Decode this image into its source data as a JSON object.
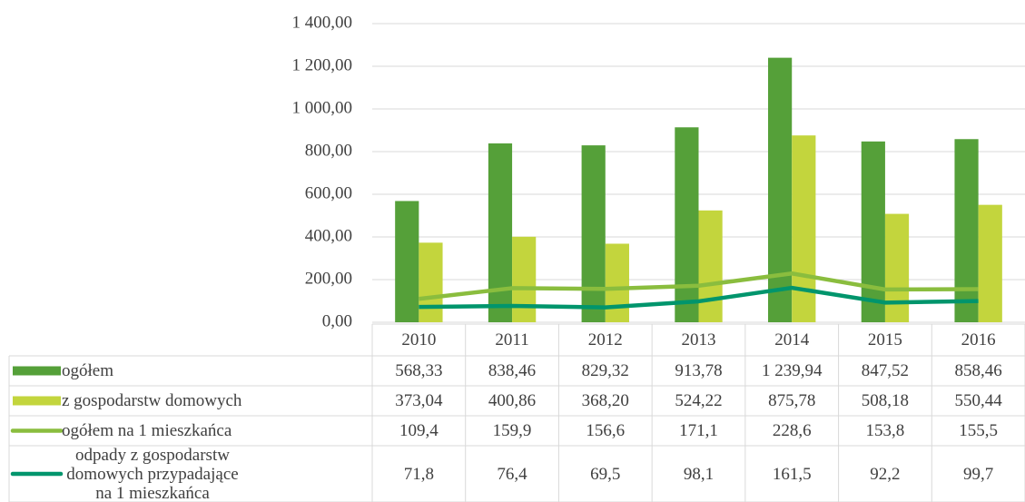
{
  "chart_data": {
    "type": "bar",
    "categories": [
      "2010",
      "2011",
      "2012",
      "2013",
      "2014",
      "2015",
      "2016"
    ],
    "series": [
      {
        "name": "ogółem",
        "type": "bar",
        "color": "#55a039",
        "values": [
          568.33,
          838.46,
          829.32,
          913.78,
          1239.94,
          847.52,
          858.46
        ],
        "value_labels": [
          "568,33",
          "838,46",
          "829,32",
          "913,78",
          "1 239,94",
          "847,52",
          "858,46"
        ]
      },
      {
        "name": "z gospodarstw domowych",
        "type": "bar",
        "color": "#c3d53d",
        "values": [
          373.04,
          400.86,
          368.2,
          524.22,
          875.78,
          508.18,
          550.44
        ],
        "value_labels": [
          "373,04",
          "400,86",
          "368,20",
          "524,22",
          "875,78",
          "508,18",
          "550,44"
        ]
      },
      {
        "name": "ogółem na 1 mieszkańca",
        "type": "line",
        "color": "#8abd3e",
        "values": [
          109.4,
          159.9,
          156.6,
          171.1,
          228.6,
          153.8,
          155.5
        ],
        "value_labels": [
          "109,4",
          "159,9",
          "156,6",
          "171,1",
          "228,6",
          "153,8",
          "155,5"
        ]
      },
      {
        "name": "odpady z gospodarstw domowych przypadające na 1 mieszkańca",
        "type": "line",
        "color": "#00956c",
        "values": [
          71.8,
          76.4,
          69.5,
          98.1,
          161.5,
          92.2,
          99.7
        ],
        "value_labels": [
          "71,8",
          "76,4",
          "69,5",
          "98,1",
          "161,5",
          "92,2",
          "99,7"
        ]
      }
    ],
    "ylim": [
      0,
      1400
    ],
    "yticks": [
      {
        "value": 0,
        "label": "0,00"
      },
      {
        "value": 200,
        "label": "200,00"
      },
      {
        "value": 400,
        "label": "400,00"
      },
      {
        "value": 600,
        "label": "600,00"
      },
      {
        "value": 800,
        "label": "800,00"
      },
      {
        "value": 1000,
        "label": "1 000,00"
      },
      {
        "value": 1200,
        "label": "1 200,00"
      },
      {
        "value": 1400,
        "label": "1 400,00"
      }
    ],
    "grid": true
  }
}
